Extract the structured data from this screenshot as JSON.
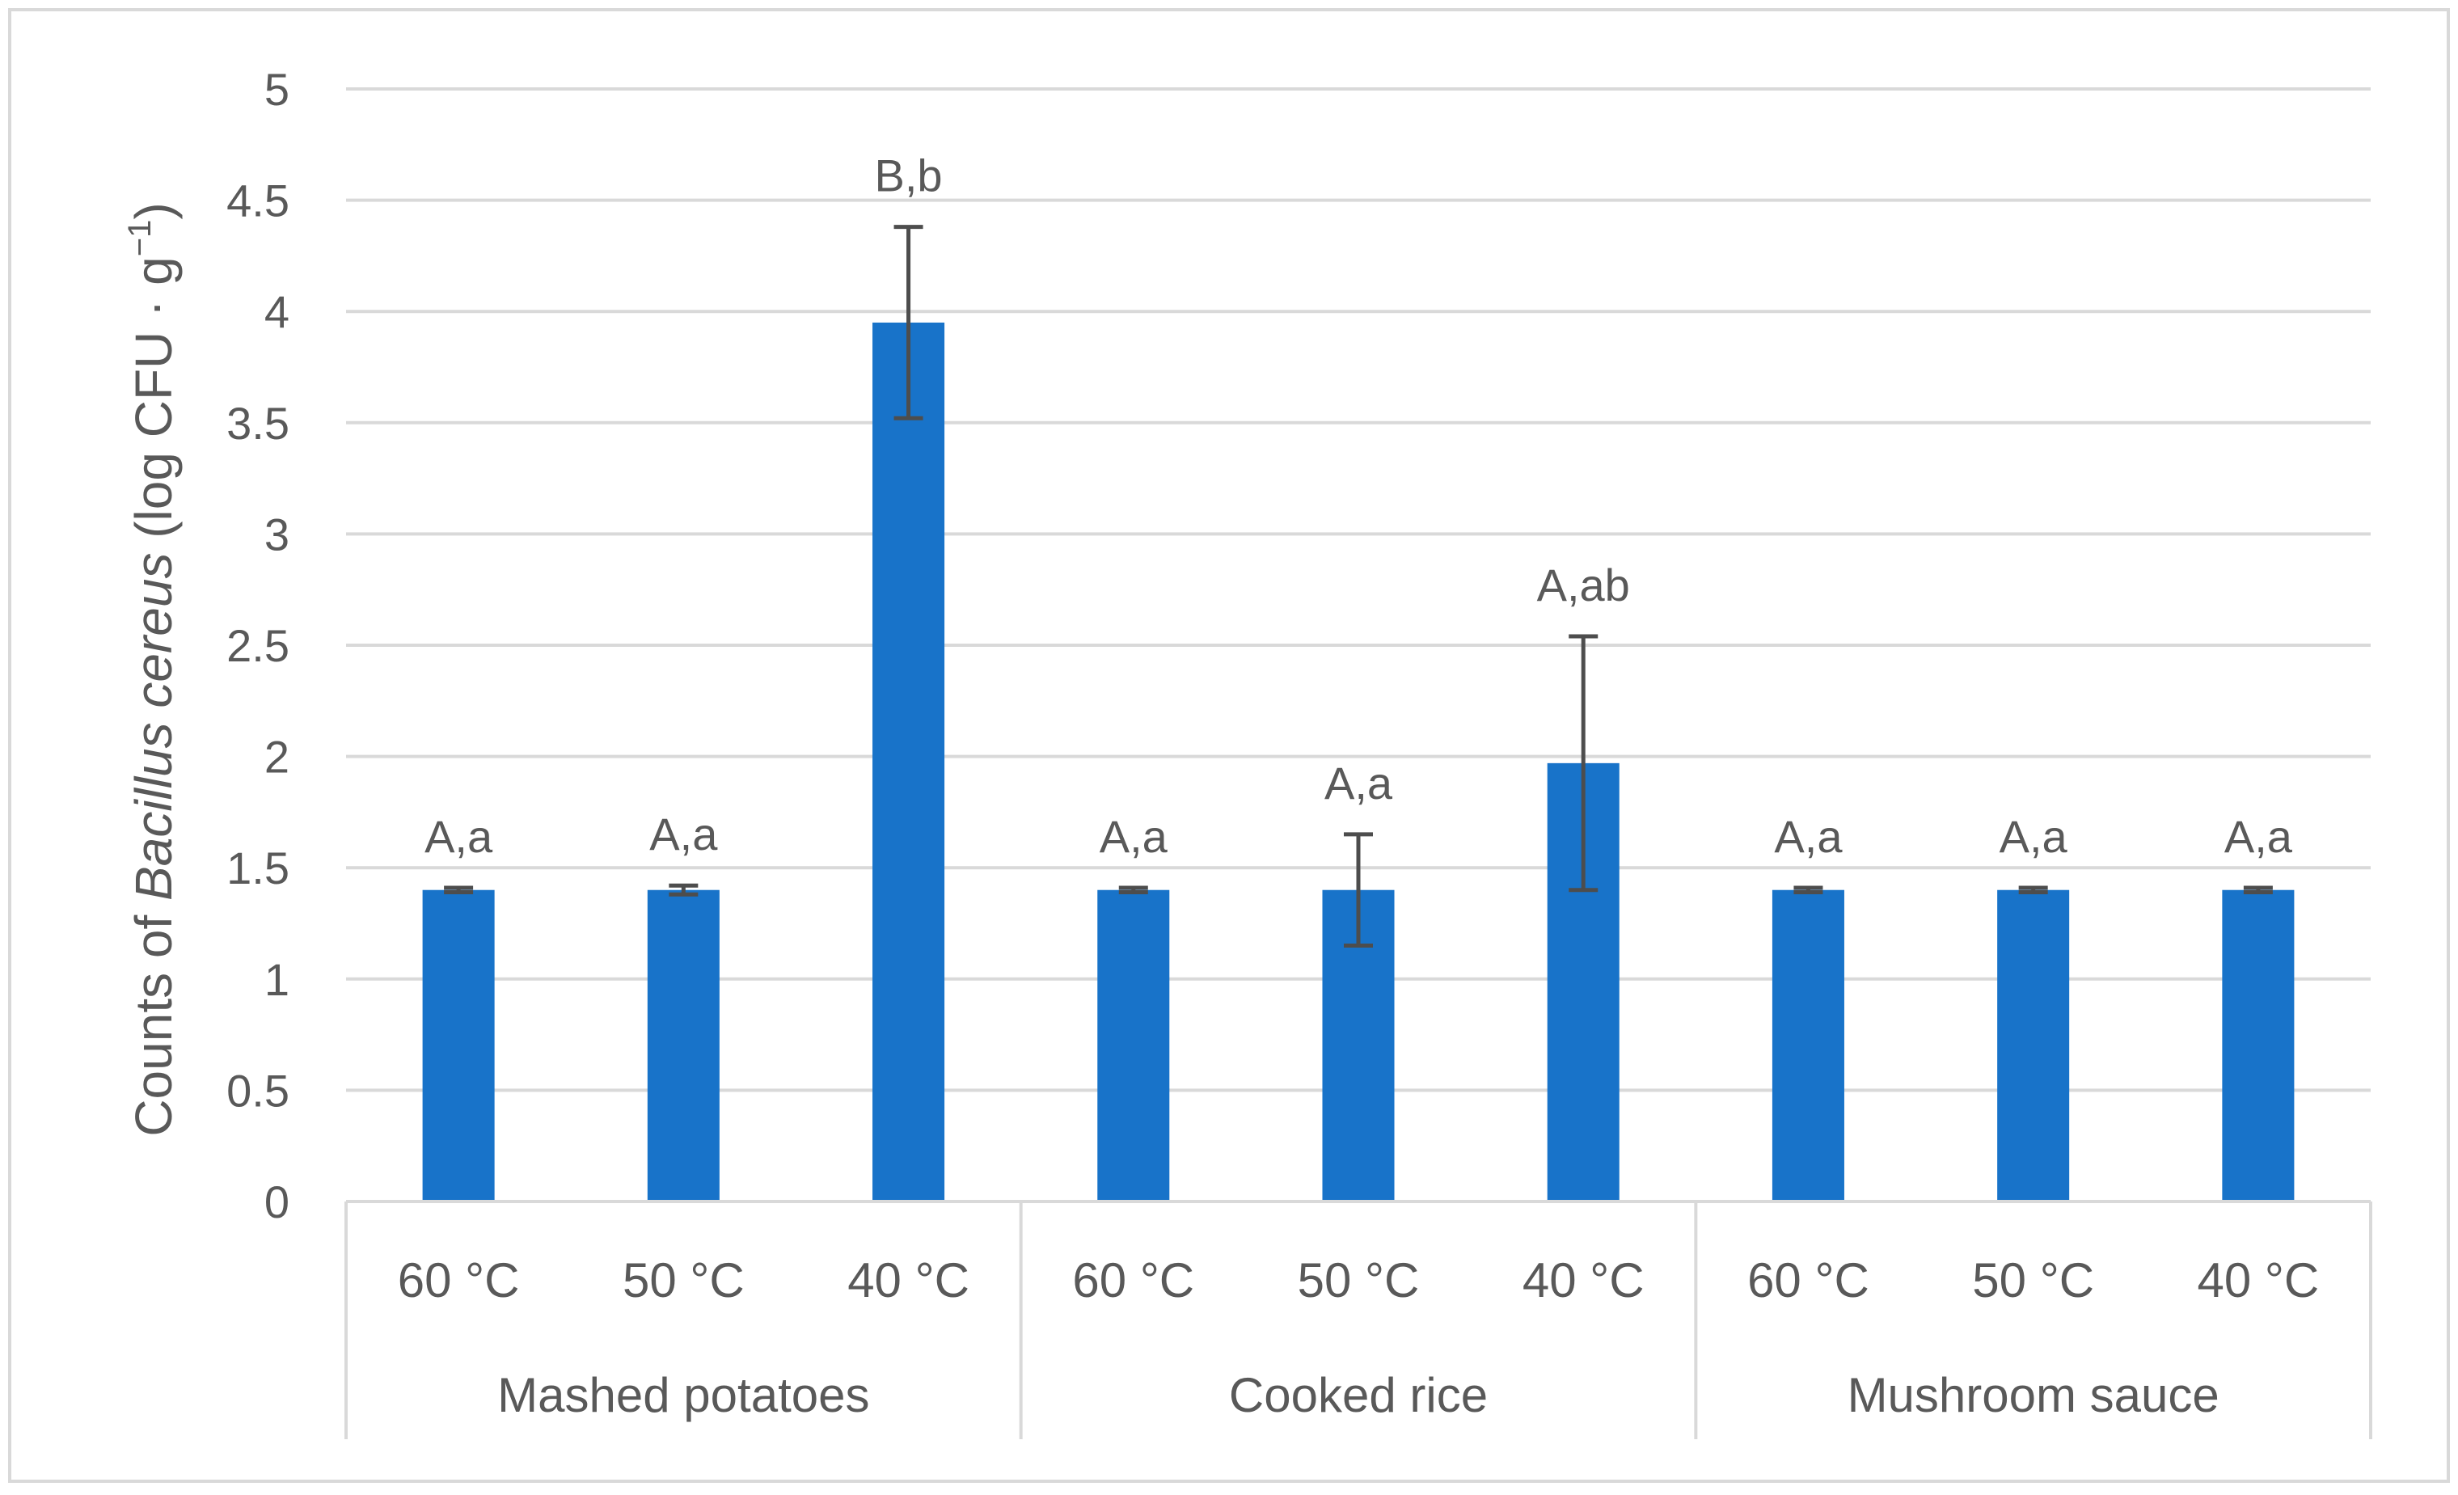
{
  "chart_data": {
    "type": "bar",
    "ylabel_parts": {
      "prefix": "Counts of ",
      "italic": "Bacillus cereus",
      "unit_open": " (log CFU · g",
      "unit_exp": "−1",
      "unit_close": ")"
    },
    "ylim": [
      0,
      5
    ],
    "yticks": [
      "0",
      "0.5",
      "1",
      "1.5",
      "2",
      "2.5",
      "3",
      "3.5",
      "4",
      "4.5",
      "5"
    ],
    "groups": [
      {
        "name": "Mashed potatoes",
        "bars": [
          {
            "label": "60 °C",
            "value": 1.4,
            "error": 0.01,
            "annotation": "A,a"
          },
          {
            "label": "50 °C",
            "value": 1.4,
            "error": 0.02,
            "annotation": "A,a"
          },
          {
            "label": "40 °C",
            "value": 3.95,
            "error": 0.43,
            "annotation": "B,b"
          }
        ]
      },
      {
        "name": "Cooked rice",
        "bars": [
          {
            "label": "60 °C",
            "value": 1.4,
            "error": 0.01,
            "annotation": "A,a"
          },
          {
            "label": "50 °C",
            "value": 1.4,
            "error": 0.25,
            "annotation": "A,a"
          },
          {
            "label": "40 °C",
            "value": 1.97,
            "error": 0.57,
            "annotation": "A,ab"
          }
        ]
      },
      {
        "name": "Mushroom sauce",
        "bars": [
          {
            "label": "60 °C",
            "value": 1.4,
            "error": 0.01,
            "annotation": "A,a"
          },
          {
            "label": "50 °C",
            "value": 1.4,
            "error": 0.01,
            "annotation": "A,a"
          },
          {
            "label": "40 °C",
            "value": 1.4,
            "error": 0.01,
            "annotation": "A,a"
          }
        ]
      }
    ],
    "grid": true,
    "legend": "none",
    "colors": {
      "bar": "#1873C9",
      "error_bar": "#4D4D4D",
      "grid": "#D9D9D9",
      "axis_text": "#595959",
      "frame": "#D9D9D9"
    }
  }
}
